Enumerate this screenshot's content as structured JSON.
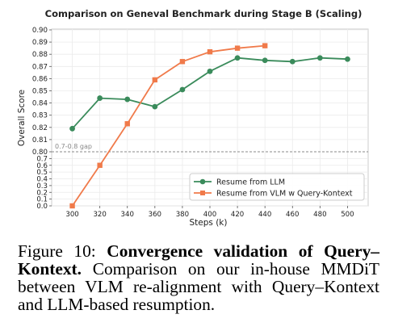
{
  "chart_data": {
    "type": "line",
    "title": "Comparison on Geneval Benchmark during Stage B (Scaling)",
    "xlabel": "Steps (k)",
    "ylabel": "Overall Score",
    "x": [
      300,
      320,
      340,
      360,
      380,
      400,
      420,
      440,
      460,
      480,
      500
    ],
    "xlim": [
      285,
      515
    ],
    "x_ticks": [
      "300",
      "320",
      "340",
      "360",
      "380",
      "400",
      "420",
      "440",
      "460",
      "480",
      "500"
    ],
    "y_axis": {
      "scale": "piecewise",
      "lower_segment": [
        0.0,
        0.8
      ],
      "upper_segment": [
        0.8,
        0.9
      ],
      "ticks": [
        "0.0",
        "0.1",
        "0.2",
        "0.3",
        "0.4",
        "0.5",
        "0.6",
        "0.7",
        "0.80",
        "0.81",
        "0.82",
        "0.83",
        "0.84",
        "0.85",
        "0.86",
        "0.87",
        "0.88",
        "0.89",
        "0.90"
      ]
    },
    "grid": true,
    "legend_position": "lower-right",
    "annotation": "0.7-0.8 gap",
    "series": [
      {
        "name": "Resume from LLM",
        "color": "#3a8b5b",
        "marker": "circle",
        "x": [
          300,
          320,
          340,
          360,
          380,
          400,
          420,
          440,
          460,
          480,
          500
        ],
        "values": [
          0.819,
          0.844,
          0.843,
          0.837,
          0.851,
          0.866,
          0.877,
          0.875,
          0.874,
          0.877,
          0.876
        ]
      },
      {
        "name": "Resume from VLM w Query-Kontext",
        "color": "#f07a4a",
        "marker": "square",
        "x": [
          300,
          320,
          340,
          360,
          380,
          400,
          420,
          440
        ],
        "values": [
          0.0,
          0.6,
          0.823,
          0.859,
          0.874,
          0.882,
          0.885,
          0.887
        ]
      }
    ]
  },
  "caption": {
    "label": "Figure 10:",
    "title": "Convergence validation of Query–Kontext.",
    "text": "Comparison on our in-house MMDiT between VLM re-alignment with Query–Kontext and LLM-based resumption."
  }
}
